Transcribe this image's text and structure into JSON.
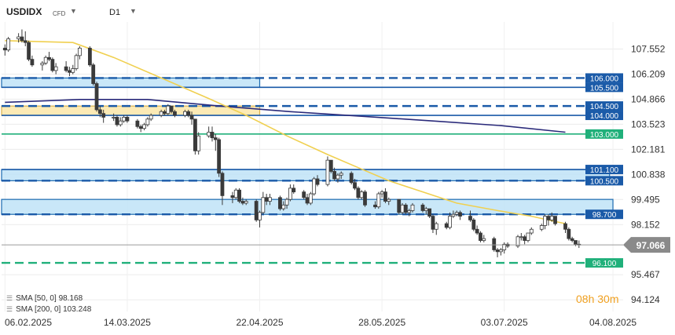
{
  "header": {
    "symbol": "USDIDX",
    "type": "CFD",
    "timeframe": "D1"
  },
  "sma_legend": [
    {
      "label": "SMA [50, 0]",
      "value": "98.168"
    },
    {
      "label": "SMA [200, 0]",
      "value": "103.248"
    }
  ],
  "timer": "08h 30m",
  "chart_data": {
    "type": "candlestick",
    "y_ticks": [
      107.552,
      106.209,
      104.866,
      103.523,
      102.181,
      100.838,
      99.495,
      98.152,
      95.467,
      94.124
    ],
    "x_ticks": [
      "06.02.2025",
      "14.03.2025",
      "22.04.2025",
      "28.05.2025",
      "03.07.2025",
      "04.08.2025"
    ],
    "x_tick_dates": [
      "2025-02-06",
      "2025-03-14",
      "2025-04-22",
      "2025-05-28",
      "2025-07-03",
      "2025-08-04"
    ],
    "ylim": [
      93.5,
      109.0
    ],
    "xlim": [
      "2025-02-05",
      "2025-08-07"
    ],
    "current_price": "97.066",
    "levels": [
      {
        "label": "106.000",
        "value": 106.0,
        "style": "dashed",
        "color": "#1a5aa8"
      },
      {
        "label": "105.500",
        "value": 105.5,
        "style": "solid",
        "color": "#1a5aa8"
      },
      {
        "label": "104.500",
        "value": 104.5,
        "style": "dashed",
        "color": "#1a5aa8"
      },
      {
        "label": "104.000",
        "value": 104.0,
        "style": "solid",
        "color": "#1a5aa8"
      },
      {
        "label": "103.000",
        "value": 103.0,
        "style": "solid",
        "color": "#20b07a"
      },
      {
        "label": "101.100",
        "value": 101.1,
        "style": "solid",
        "color": "#1a5aa8"
      },
      {
        "label": "100.500",
        "value": 100.5,
        "style": "dashed",
        "color": "#1a5aa8"
      },
      {
        "label": "98.700",
        "value": 98.7,
        "style": "dashed",
        "color": "#1a5aa8"
      },
      {
        "label": "96.100",
        "value": 96.1,
        "style": "dashed",
        "color": "#20b07a"
      }
    ],
    "zones": [
      {
        "from": 105.5,
        "to": 106.0,
        "color": "#bfe3f7",
        "border": "#1a6ab0",
        "end": "2025-04-22"
      },
      {
        "from": 104.0,
        "to": 104.5,
        "color": "#fbe6a8",
        "border": "#d8b050",
        "end": "2025-04-22"
      },
      {
        "from": 100.5,
        "to": 101.1,
        "color": "#bfe3f7",
        "border": "#1a6ab0",
        "end": "2025-08-03"
      },
      {
        "from": 98.7,
        "to": 99.5,
        "color": "#bfe3f7",
        "border": "#1a6ab0",
        "end": "2025-08-04"
      }
    ],
    "sma50": [
      [
        "2025-02-06",
        108.0
      ],
      [
        "2025-02-26",
        107.9
      ],
      [
        "2025-03-10",
        107.1
      ],
      [
        "2025-03-24",
        106.0
      ],
      [
        "2025-04-07",
        104.9
      ],
      [
        "2025-04-18",
        104.0
      ],
      [
        "2025-04-30",
        102.9
      ],
      [
        "2025-05-12",
        101.9
      ],
      [
        "2025-05-21",
        101.2
      ],
      [
        "2025-05-30",
        100.5
      ],
      [
        "2025-06-09",
        99.9
      ],
      [
        "2025-06-19",
        99.3
      ],
      [
        "2025-07-01",
        98.9
      ],
      [
        "2025-07-11",
        98.6
      ],
      [
        "2025-07-21",
        98.2
      ]
    ],
    "sma200": [
      [
        "2025-02-06",
        104.7
      ],
      [
        "2025-02-28",
        104.85
      ],
      [
        "2025-03-20",
        104.85
      ],
      [
        "2025-04-10",
        104.5
      ],
      [
        "2025-05-01",
        104.2
      ],
      [
        "2025-05-22",
        103.95
      ],
      [
        "2025-06-12",
        103.7
      ],
      [
        "2025-07-02",
        103.45
      ],
      [
        "2025-07-21",
        103.1
      ]
    ],
    "candles": [
      [
        "2025-02-06",
        107.6,
        107.8,
        107.2,
        107.5
      ],
      [
        "2025-02-07",
        107.5,
        108.2,
        107.4,
        108.1
      ],
      [
        "2025-02-10",
        108.1,
        108.4,
        107.9,
        108.2
      ],
      [
        "2025-02-11",
        108.2,
        108.6,
        107.9,
        108.0
      ],
      [
        "2025-02-12",
        108.0,
        108.5,
        107.7,
        107.9
      ],
      [
        "2025-02-13",
        107.9,
        108.0,
        106.9,
        107.0
      ],
      [
        "2025-02-14",
        107.0,
        107.2,
        106.6,
        106.7
      ],
      [
        "2025-02-17",
        106.7,
        106.9,
        106.4,
        106.8
      ],
      [
        "2025-02-18",
        106.8,
        107.2,
        106.7,
        107.1
      ],
      [
        "2025-02-19",
        107.1,
        107.4,
        106.9,
        107.0
      ],
      [
        "2025-02-20",
        107.0,
        107.1,
        106.3,
        106.4
      ],
      [
        "2025-02-21",
        106.4,
        106.8,
        106.2,
        106.6
      ],
      [
        "2025-02-24",
        106.6,
        106.9,
        106.3,
        106.4
      ],
      [
        "2025-02-25",
        106.4,
        106.6,
        106.1,
        106.3
      ],
      [
        "2025-02-26",
        106.3,
        106.7,
        106.2,
        106.5
      ],
      [
        "2025-02-27",
        106.5,
        107.3,
        106.4,
        107.2
      ],
      [
        "2025-02-28",
        107.2,
        107.7,
        107.0,
        107.6
      ],
      [
        "2025-03-03",
        107.6,
        107.7,
        106.6,
        106.7
      ],
      [
        "2025-03-04",
        106.7,
        106.8,
        105.6,
        105.7
      ],
      [
        "2025-03-05",
        105.7,
        105.8,
        104.2,
        104.3
      ],
      [
        "2025-03-06",
        104.3,
        104.5,
        103.9,
        104.1
      ],
      [
        "2025-03-07",
        104.1,
        104.3,
        103.6,
        103.9
      ],
      [
        "2025-03-10",
        103.9,
        104.1,
        103.7,
        103.9
      ],
      [
        "2025-03-11",
        103.9,
        104.0,
        103.4,
        103.5
      ],
      [
        "2025-03-12",
        103.5,
        103.9,
        103.4,
        103.7
      ],
      [
        "2025-03-13",
        103.7,
        104.0,
        103.6,
        103.9
      ],
      [
        "2025-03-14",
        103.9,
        104.0,
        103.6,
        103.7
      ],
      [
        "2025-03-17",
        103.7,
        103.8,
        103.3,
        103.4
      ],
      [
        "2025-03-18",
        103.4,
        103.5,
        103.1,
        103.3
      ],
      [
        "2025-03-19",
        103.3,
        103.6,
        103.2,
        103.5
      ],
      [
        "2025-03-20",
        103.5,
        103.9,
        103.4,
        103.8
      ],
      [
        "2025-03-21",
        103.8,
        104.1,
        103.7,
        104.0
      ],
      [
        "2025-03-24",
        104.0,
        104.3,
        103.9,
        104.2
      ],
      [
        "2025-03-25",
        104.2,
        104.3,
        104.0,
        104.1
      ],
      [
        "2025-03-26",
        104.1,
        104.6,
        104.0,
        104.5
      ],
      [
        "2025-03-27",
        104.5,
        104.5,
        104.1,
        104.2
      ],
      [
        "2025-03-28",
        104.2,
        104.3,
        103.9,
        104.0
      ],
      [
        "2025-03-31",
        104.0,
        104.3,
        103.9,
        104.2
      ],
      [
        "2025-04-01",
        104.2,
        104.3,
        103.9,
        104.0
      ],
      [
        "2025-04-02",
        104.0,
        104.2,
        103.5,
        103.8
      ],
      [
        "2025-04-03",
        103.8,
        103.8,
        101.9,
        102.1
      ],
      [
        "2025-04-04",
        102.1,
        103.1,
        101.9,
        102.9
      ],
      [
        "2025-04-07",
        102.9,
        103.4,
        102.8,
        103.1
      ],
      [
        "2025-04-08",
        103.1,
        103.4,
        102.6,
        102.8
      ],
      [
        "2025-04-09",
        102.8,
        103.0,
        102.1,
        102.7
      ],
      [
        "2025-04-10",
        102.7,
        102.8,
        100.7,
        100.9
      ],
      [
        "2025-04-11",
        100.9,
        101.0,
        99.2,
        99.7
      ],
      [
        "2025-04-14",
        99.7,
        99.9,
        99.3,
        99.6
      ],
      [
        "2025-04-15",
        99.6,
        100.1,
        99.5,
        100.0
      ],
      [
        "2025-04-16",
        100.0,
        100.1,
        99.3,
        99.4
      ],
      [
        "2025-04-17",
        99.4,
        99.6,
        99.2,
        99.3
      ],
      [
        "2025-04-18",
        99.3,
        99.5,
        99.2,
        99.4
      ],
      [
        "2025-04-21",
        99.4,
        99.5,
        98.3,
        98.4
      ],
      [
        "2025-04-22",
        98.4,
        98.9,
        98.0,
        98.8
      ],
      [
        "2025-04-23",
        98.8,
        99.9,
        98.7,
        99.6
      ],
      [
        "2025-04-24",
        99.6,
        99.8,
        99.2,
        99.4
      ],
      [
        "2025-04-25",
        99.4,
        99.8,
        99.2,
        99.6
      ],
      [
        "2025-04-28",
        99.6,
        99.7,
        98.9,
        99.0
      ],
      [
        "2025-04-29",
        99.0,
        99.4,
        98.9,
        99.2
      ],
      [
        "2025-04-30",
        99.2,
        99.6,
        99.0,
        99.5
      ],
      [
        "2025-05-01",
        99.5,
        100.3,
        99.4,
        100.1
      ],
      [
        "2025-05-02",
        100.1,
        100.3,
        99.8,
        99.9
      ],
      [
        "2025-05-05",
        99.9,
        100.0,
        99.5,
        99.6
      ],
      [
        "2025-05-06",
        99.6,
        99.8,
        99.2,
        99.3
      ],
      [
        "2025-05-07",
        99.3,
        99.9,
        99.2,
        99.8
      ],
      [
        "2025-05-08",
        99.8,
        100.7,
        99.7,
        100.6
      ],
      [
        "2025-05-09",
        100.6,
        100.8,
        100.2,
        100.3
      ],
      [
        "2025-05-12",
        100.3,
        101.8,
        100.2,
        101.6
      ],
      [
        "2025-05-13",
        101.6,
        101.6,
        100.9,
        101.0
      ],
      [
        "2025-05-14",
        101.0,
        101.2,
        100.5,
        100.6
      ],
      [
        "2025-05-15",
        100.6,
        100.9,
        100.4,
        100.8
      ],
      [
        "2025-05-16",
        100.8,
        101.0,
        100.6,
        100.9
      ],
      [
        "2025-05-19",
        100.9,
        101.0,
        100.3,
        100.4
      ],
      [
        "2025-05-20",
        100.4,
        100.6,
        100.0,
        100.1
      ],
      [
        "2025-05-21",
        100.1,
        100.2,
        99.5,
        99.6
      ],
      [
        "2025-05-22",
        99.6,
        100.0,
        99.5,
        99.9
      ],
      [
        "2025-05-23",
        99.9,
        100.0,
        99.1,
        99.2
      ],
      [
        "2025-05-26",
        99.2,
        99.4,
        99.0,
        99.1
      ],
      [
        "2025-05-27",
        99.1,
        99.9,
        99.0,
        99.8
      ],
      [
        "2025-05-28",
        99.8,
        100.0,
        99.6,
        99.9
      ],
      [
        "2025-05-29",
        99.9,
        100.1,
        99.3,
        99.4
      ],
      [
        "2025-05-30",
        99.4,
        99.6,
        99.2,
        99.5
      ],
      [
        "2025-06-02",
        99.5,
        99.5,
        98.7,
        98.8
      ],
      [
        "2025-06-03",
        98.8,
        99.3,
        98.7,
        99.2
      ],
      [
        "2025-06-04",
        99.2,
        99.3,
        98.7,
        98.8
      ],
      [
        "2025-06-05",
        98.8,
        99.0,
        98.6,
        98.9
      ],
      [
        "2025-06-06",
        98.9,
        99.3,
        98.8,
        99.2
      ],
      [
        "2025-06-09",
        99.2,
        99.3,
        98.8,
        98.9
      ],
      [
        "2025-06-10",
        98.9,
        99.1,
        98.7,
        99.0
      ],
      [
        "2025-06-11",
        99.0,
        99.0,
        98.5,
        98.6
      ],
      [
        "2025-06-12",
        98.6,
        98.7,
        97.7,
        97.9
      ],
      [
        "2025-06-13",
        97.9,
        98.3,
        97.6,
        98.2
      ],
      [
        "2025-06-16",
        98.2,
        98.3,
        97.9,
        98.0
      ],
      [
        "2025-06-17",
        98.0,
        98.8,
        97.9,
        98.6
      ],
      [
        "2025-06-18",
        98.6,
        98.9,
        98.5,
        98.7
      ],
      [
        "2025-06-19",
        98.7,
        98.9,
        98.6,
        98.8
      ],
      [
        "2025-06-20",
        98.8,
        98.9,
        98.4,
        98.6
      ],
      [
        "2025-06-23",
        98.6,
        98.9,
        98.3,
        98.4
      ],
      [
        "2025-06-24",
        98.4,
        98.5,
        97.8,
        97.9
      ],
      [
        "2025-06-25",
        97.9,
        98.1,
        97.6,
        97.7
      ],
      [
        "2025-06-26",
        97.7,
        97.8,
        97.2,
        97.3
      ],
      [
        "2025-06-27",
        97.3,
        97.6,
        97.2,
        97.4
      ],
      [
        "2025-06-30",
        97.4,
        97.5,
        96.7,
        96.8
      ],
      [
        "2025-07-01",
        96.8,
        96.9,
        96.4,
        96.7
      ],
      [
        "2025-07-02",
        96.7,
        96.9,
        96.5,
        96.8
      ],
      [
        "2025-07-03",
        96.8,
        97.2,
        96.6,
        97.1
      ],
      [
        "2025-07-04",
        97.1,
        97.2,
        96.9,
        97.0
      ],
      [
        "2025-07-07",
        97.0,
        97.6,
        96.9,
        97.5
      ],
      [
        "2025-07-08",
        97.5,
        97.7,
        97.3,
        97.5
      ],
      [
        "2025-07-09",
        97.5,
        97.6,
        97.1,
        97.3
      ],
      [
        "2025-07-10",
        97.3,
        97.7,
        97.2,
        97.7
      ],
      [
        "2025-07-11",
        97.7,
        98.0,
        97.6,
        97.9
      ],
      [
        "2025-07-14",
        97.9,
        98.2,
        97.8,
        98.1
      ],
      [
        "2025-07-15",
        98.1,
        98.7,
        97.9,
        98.6
      ],
      [
        "2025-07-16",
        98.6,
        98.7,
        98.1,
        98.4
      ],
      [
        "2025-07-17",
        98.4,
        98.8,
        98.3,
        98.6
      ],
      [
        "2025-07-18",
        98.6,
        98.6,
        98.1,
        98.2
      ],
      [
        "2025-07-21",
        98.2,
        98.3,
        97.7,
        97.9
      ],
      [
        "2025-07-22",
        97.9,
        98.0,
        97.3,
        97.4
      ],
      [
        "2025-07-23",
        97.4,
        97.5,
        97.2,
        97.3
      ],
      [
        "2025-07-24",
        97.3,
        97.3,
        97.0,
        97.1
      ],
      [
        "2025-07-25",
        97.1,
        97.3,
        96.9,
        97.066
      ]
    ]
  }
}
